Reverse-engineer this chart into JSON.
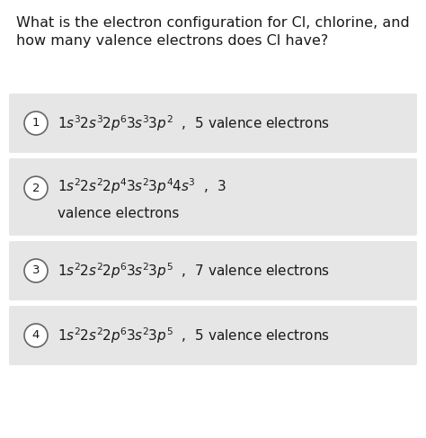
{
  "title_line1": "What is the electron configuration for Cl, chlorine, and",
  "title_line2": "how many valence electrons does Cl have?",
  "title_fontsize": 11.5,
  "background_color": "#ffffff",
  "box_color": "#e6e6e6",
  "text_color": "#1a1a1a",
  "circle_edge_color": "#666666",
  "fig_width": 4.74,
  "fig_height": 4.87,
  "dpi": 100,
  "options": [
    {
      "number": "1",
      "line1": "$1s^3\\!\\! \\;2s^3\\!\\! \\;2p^6\\!\\! \\;3s^3\\!\\! \\;3p^2$  ,  5 valence electrons",
      "line2": null
    },
    {
      "number": "2",
      "line1": "$1s^2\\!\\! \\;2s^2\\!\\! \\;2p^4\\!\\! \\;3s^2\\!\\! \\;3p^4\\!\\! \\;4s^3$  ,  3",
      "line2": "valence electrons"
    },
    {
      "number": "3",
      "line1": "$1s^2\\!\\! \\;2s^2\\!\\! \\;2p^6\\!\\! \\;3s^2\\!\\! \\;3p^5$  ,  7 valence electrons",
      "line2": null
    },
    {
      "number": "4",
      "line1": "$1s^2\\!\\! \\;2s^2\\!\\! \\;2p^6\\!\\! \\;3s^2\\!\\! \\;3p^5$  ,  5 valence electrons",
      "line2": null
    }
  ]
}
